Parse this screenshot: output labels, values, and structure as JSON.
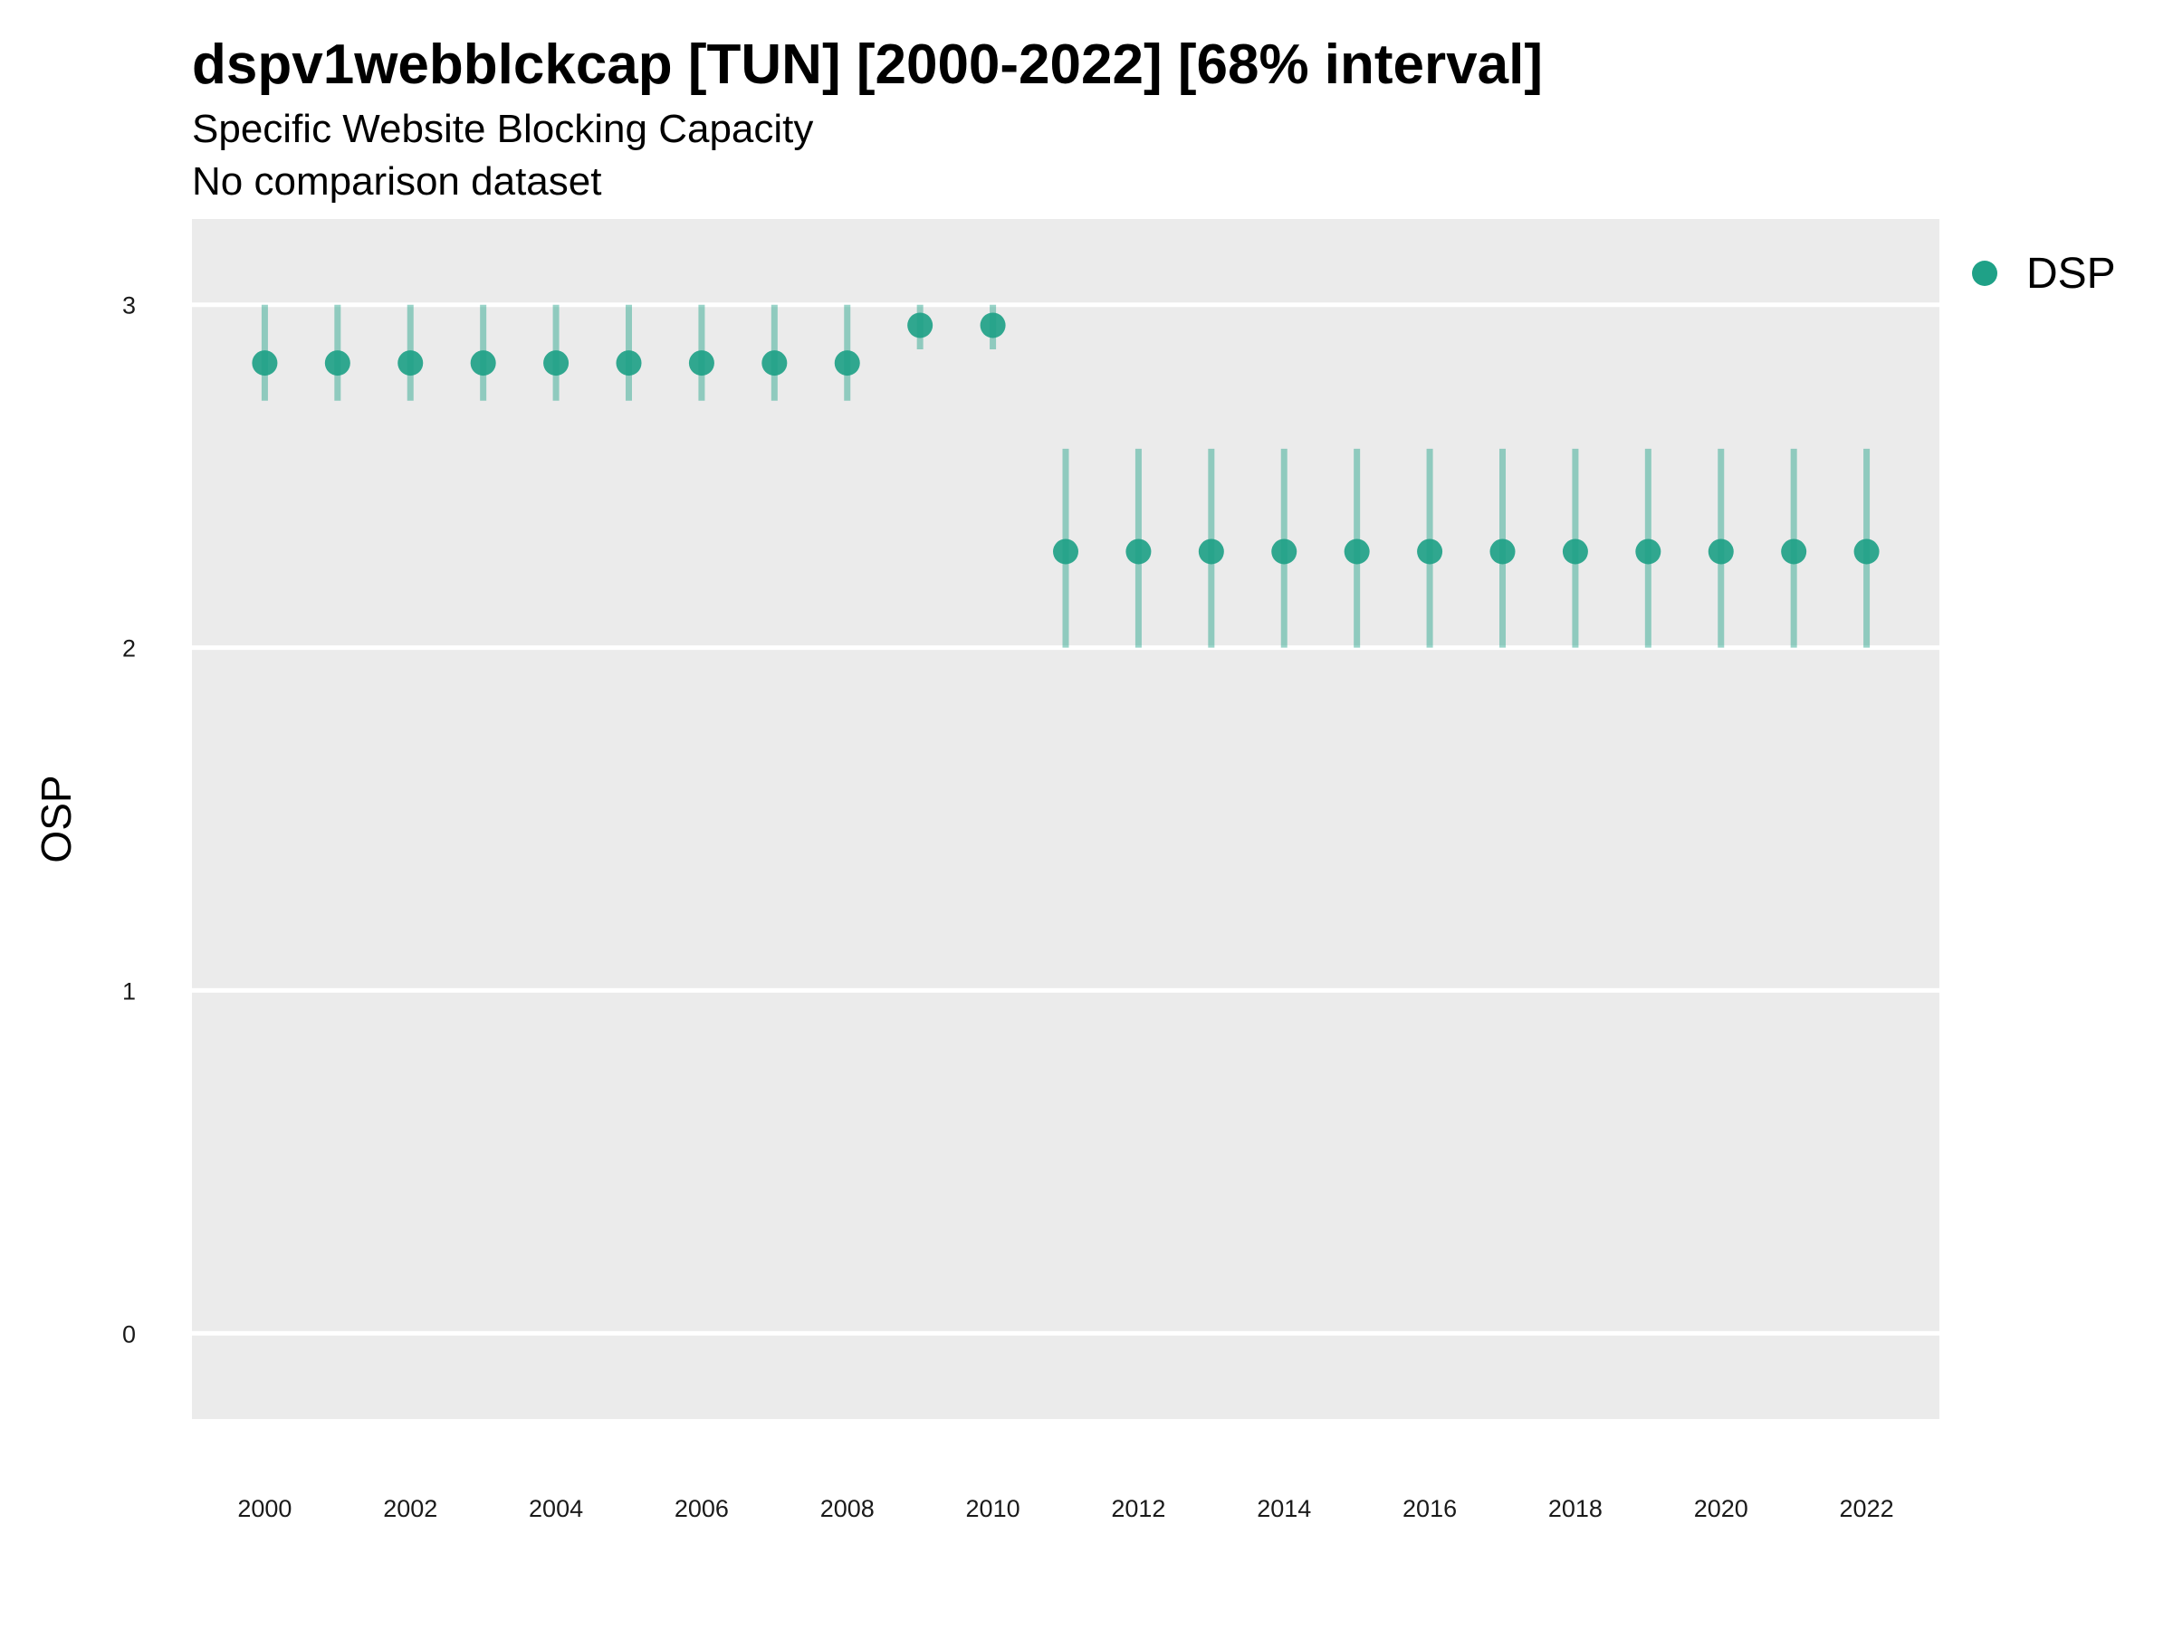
{
  "chart_data": {
    "type": "scatter",
    "title": "dspv1webblckcap [TUN] [2000-2022] [68% interval]",
    "subtitle": "Specific Website Blocking Capacity",
    "subtitle2": "No comparison dataset",
    "xlabel": "",
    "ylabel": "OSP",
    "xlim": [
      1999.0,
      2023.0
    ],
    "ylim": [
      -0.25,
      3.25
    ],
    "x_ticks": [
      2000,
      2002,
      2004,
      2006,
      2008,
      2010,
      2012,
      2014,
      2016,
      2018,
      2020,
      2022
    ],
    "y_ticks": [
      0,
      1,
      2,
      3
    ],
    "grid": true,
    "legend_position": "right",
    "series": [
      {
        "name": "DSP",
        "color": "#1fa187",
        "x": [
          2000,
          2001,
          2002,
          2003,
          2004,
          2005,
          2006,
          2007,
          2008,
          2009,
          2010,
          2011,
          2012,
          2013,
          2014,
          2015,
          2016,
          2017,
          2018,
          2019,
          2020,
          2021,
          2022
        ],
        "y": [
          2.83,
          2.83,
          2.83,
          2.83,
          2.83,
          2.83,
          2.83,
          2.83,
          2.83,
          2.94,
          2.94,
          2.28,
          2.28,
          2.28,
          2.28,
          2.28,
          2.28,
          2.28,
          2.28,
          2.28,
          2.28,
          2.28,
          2.28
        ],
        "lower": [
          2.72,
          2.72,
          2.72,
          2.72,
          2.72,
          2.72,
          2.72,
          2.72,
          2.72,
          2.87,
          2.87,
          2.0,
          2.0,
          2.0,
          2.0,
          2.0,
          2.0,
          2.0,
          2.0,
          2.0,
          2.0,
          2.0,
          2.0
        ],
        "upper": [
          3.0,
          3.0,
          3.0,
          3.0,
          3.0,
          3.0,
          3.0,
          3.0,
          3.0,
          3.0,
          3.0,
          2.58,
          2.58,
          2.58,
          2.58,
          2.58,
          2.58,
          2.58,
          2.58,
          2.58,
          2.58,
          2.58,
          2.58
        ]
      }
    ]
  }
}
